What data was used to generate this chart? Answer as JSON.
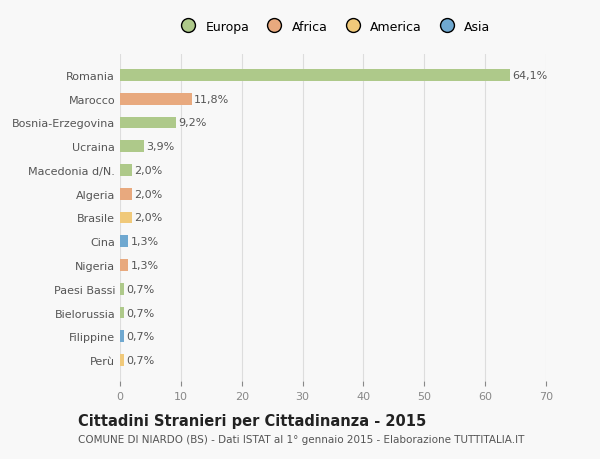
{
  "categories": [
    "Romania",
    "Marocco",
    "Bosnia-Erzegovina",
    "Ucraina",
    "Macedonia d/N.",
    "Algeria",
    "Brasile",
    "Cina",
    "Nigeria",
    "Paesi Bassi",
    "Bielorussia",
    "Filippine",
    "Perù"
  ],
  "values": [
    64.1,
    11.8,
    9.2,
    3.9,
    2.0,
    2.0,
    2.0,
    1.3,
    1.3,
    0.7,
    0.7,
    0.7,
    0.7
  ],
  "labels": [
    "64,1%",
    "11,8%",
    "9,2%",
    "3,9%",
    "2,0%",
    "2,0%",
    "2,0%",
    "1,3%",
    "1,3%",
    "0,7%",
    "0,7%",
    "0,7%",
    "0,7%"
  ],
  "colors": [
    "#aec98a",
    "#e8a97e",
    "#aec98a",
    "#aec98a",
    "#aec98a",
    "#e8a97e",
    "#f0c97a",
    "#6fa8d0",
    "#e8a97e",
    "#aec98a",
    "#aec98a",
    "#6fa8d0",
    "#f0c97a"
  ],
  "legend_labels": [
    "Europa",
    "Africa",
    "America",
    "Asia"
  ],
  "legend_colors": [
    "#aec98a",
    "#e8a97e",
    "#f0c97a",
    "#6fa8d0"
  ],
  "title": "Cittadini Stranieri per Cittadinanza - 2015",
  "subtitle": "COMUNE DI NIARDO (BS) - Dati ISTAT al 1° gennaio 2015 - Elaborazione TUTTITALIA.IT",
  "xlim": [
    0,
    70
  ],
  "xticks": [
    0,
    10,
    20,
    30,
    40,
    50,
    60,
    70
  ],
  "bg_color": "#f8f8f8",
  "grid_color": "#dddddd",
  "bar_height": 0.5,
  "label_fontsize": 8,
  "tick_fontsize": 8,
  "title_fontsize": 10.5,
  "subtitle_fontsize": 7.5
}
